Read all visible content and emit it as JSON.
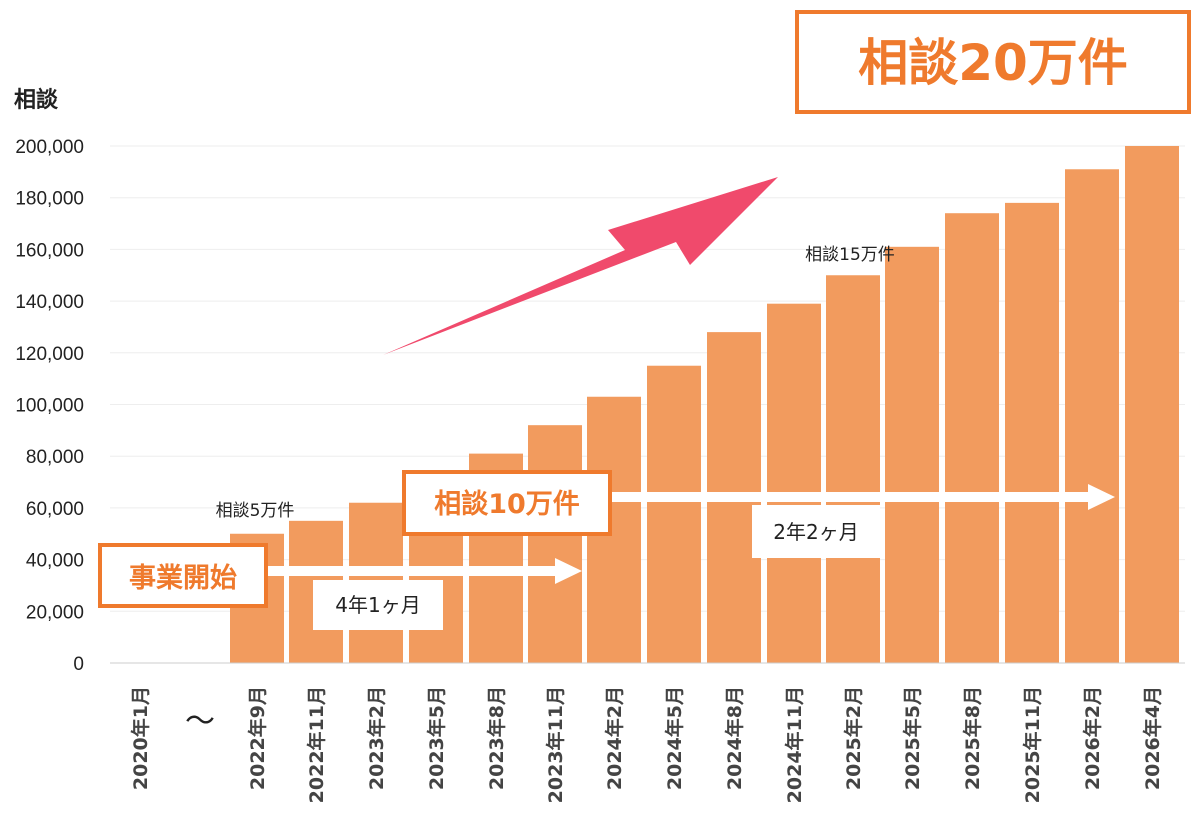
{
  "headline": "相談20万件",
  "milestones": {
    "start": "事業開始",
    "m10": "相談10万件",
    "m5": "相談5万件",
    "m15": "相談15万件"
  },
  "periods": {
    "first": "4年1ヶ月",
    "second": "2年2ヶ月"
  },
  "axis_break": "〜",
  "colors": {
    "bar": "#f29b5e",
    "accent": "#ef7a2d",
    "arrow": "#f04a6c",
    "grid": "#eeeeee"
  },
  "chart_data": {
    "type": "bar",
    "ylabel": "相談",
    "ylim": [
      0,
      200000
    ],
    "yticks": [
      "0",
      "20,000",
      "40,000",
      "60,000",
      "80,000",
      "100,000",
      "120,000",
      "140,000",
      "160,000",
      "180,000",
      "200,000"
    ],
    "categories": [
      "2020年1月",
      "2022年9月",
      "2022年11月",
      "2023年2月",
      "2023年5月",
      "2023年8月",
      "2023年11月",
      "2024年2月",
      "2024年5月",
      "2024年8月",
      "2024年11月",
      "2025年2月",
      "2025年5月",
      "2025年8月",
      "2025年11月",
      "2026年2月",
      "2026年4月"
    ],
    "values": [
      0,
      50000,
      55000,
      62000,
      70000,
      81000,
      92000,
      103000,
      115000,
      128000,
      139000,
      150000,
      161000,
      174000,
      178000,
      191000,
      200000
    ],
    "grid": true
  }
}
